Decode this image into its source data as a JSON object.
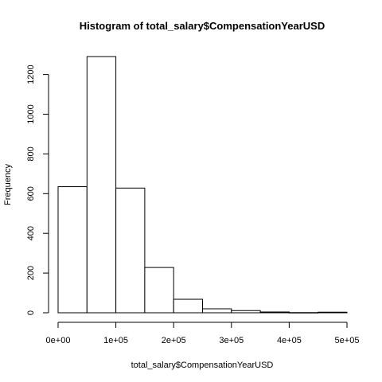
{
  "chart_data": {
    "type": "bar",
    "title": "Histogram of total_salary$CompensationYearUSD",
    "xlabel": "total_salary$CompensationYearUSD",
    "ylabel": "Frequency",
    "bin_width": 50000,
    "bins": [
      {
        "start": 0,
        "end": 50000,
        "value": 635
      },
      {
        "start": 50000,
        "end": 100000,
        "value": 1290
      },
      {
        "start": 100000,
        "end": 150000,
        "value": 628
      },
      {
        "start": 150000,
        "end": 200000,
        "value": 228
      },
      {
        "start": 200000,
        "end": 250000,
        "value": 68
      },
      {
        "start": 250000,
        "end": 300000,
        "value": 20
      },
      {
        "start": 300000,
        "end": 350000,
        "value": 11
      },
      {
        "start": 350000,
        "end": 400000,
        "value": 4
      },
      {
        "start": 400000,
        "end": 450000,
        "value": 1
      },
      {
        "start": 450000,
        "end": 500000,
        "value": 3
      }
    ],
    "xlim": [
      0,
      500000
    ],
    "ylim": [
      0,
      1300
    ],
    "x_ticks": [
      {
        "value": 0,
        "label": "0e+00"
      },
      {
        "value": 100000,
        "label": "1e+05"
      },
      {
        "value": 200000,
        "label": "2e+05"
      },
      {
        "value": 300000,
        "label": "3e+05"
      },
      {
        "value": 400000,
        "label": "4e+05"
      },
      {
        "value": 500000,
        "label": "5e+05"
      }
    ],
    "y_ticks": [
      {
        "value": 0,
        "label": "0"
      },
      {
        "value": 200,
        "label": "200"
      },
      {
        "value": 400,
        "label": "400"
      },
      {
        "value": 600,
        "label": "600"
      },
      {
        "value": 800,
        "label": "800"
      },
      {
        "value": 1000,
        "label": "1000"
      },
      {
        "value": 1200,
        "label": "1200"
      }
    ],
    "grid": false,
    "bar_fill": "#ffffff",
    "bar_stroke": "#000000"
  }
}
